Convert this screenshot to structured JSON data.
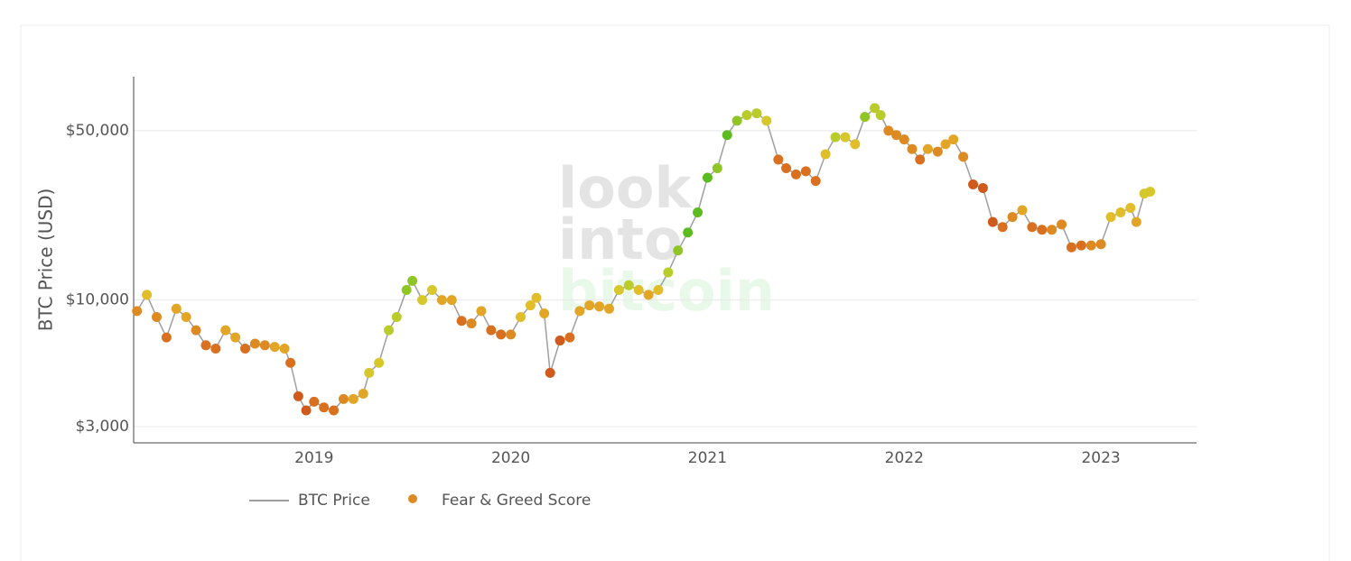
{
  "chart_data": {
    "type": "line-scatter",
    "y_label": "BTC Price (USD)",
    "watermark": [
      "look",
      "into",
      "bitcoin"
    ],
    "log_y": true,
    "grid": true,
    "xlim": [
      2018.083,
      2023.486
    ],
    "xticks": [
      2019,
      2020,
      2021,
      2022,
      2023
    ],
    "ylim": [
      2570,
      83600
    ],
    "yticks": [
      {
        "value": 3000,
        "label": "$3,000"
      },
      {
        "value": 10000,
        "label": "$10,000"
      },
      {
        "value": 50000,
        "label": "$50,000"
      }
    ],
    "x": [
      2018.1,
      2018.15,
      2018.2,
      2018.25,
      2018.3,
      2018.35,
      2018.4,
      2018.45,
      2018.5,
      2018.55,
      2018.6,
      2018.65,
      2018.7,
      2018.75,
      2018.8,
      2018.85,
      2018.88,
      2018.92,
      2018.96,
      2019.0,
      2019.05,
      2019.1,
      2019.15,
      2019.2,
      2019.25,
      2019.28,
      2019.33,
      2019.38,
      2019.42,
      2019.47,
      2019.5,
      2019.55,
      2019.6,
      2019.65,
      2019.7,
      2019.75,
      2019.8,
      2019.85,
      2019.9,
      2019.95,
      2020.0,
      2020.05,
      2020.1,
      2020.13,
      2020.17,
      2020.2,
      2020.25,
      2020.3,
      2020.35,
      2020.4,
      2020.45,
      2020.5,
      2020.55,
      2020.6,
      2020.65,
      2020.7,
      2020.75,
      2020.8,
      2020.85,
      2020.9,
      2020.95,
      2021.0,
      2021.05,
      2021.1,
      2021.15,
      2021.2,
      2021.25,
      2021.3,
      2021.36,
      2021.4,
      2021.45,
      2021.5,
      2021.55,
      2021.6,
      2021.65,
      2021.7,
      2021.75,
      2021.8,
      2021.85,
      2021.88,
      2021.92,
      2021.96,
      2022.0,
      2022.04,
      2022.08,
      2022.12,
      2022.17,
      2022.21,
      2022.25,
      2022.3,
      2022.35,
      2022.4,
      2022.45,
      2022.5,
      2022.55,
      2022.6,
      2022.65,
      2022.7,
      2022.75,
      2022.8,
      2022.85,
      2022.9,
      2022.95,
      2023.0,
      2023.05,
      2023.1,
      2023.15,
      2023.18,
      2023.22,
      2023.25
    ],
    "series": [
      {
        "name": "BTC Price",
        "color": "#9e9e9e",
        "values": [
          9000,
          10500,
          8500,
          7000,
          9200,
          8500,
          7500,
          6500,
          6300,
          7500,
          7000,
          6300,
          6600,
          6500,
          6400,
          6300,
          5500,
          4000,
          3500,
          3800,
          3600,
          3500,
          3900,
          3900,
          4100,
          5000,
          5500,
          7500,
          8500,
          11000,
          12000,
          10000,
          11000,
          10000,
          10000,
          8200,
          8000,
          9000,
          7500,
          7200,
          7200,
          8500,
          9500,
          10200,
          8800,
          5000,
          6800,
          7000,
          9000,
          9500,
          9400,
          9200,
          11000,
          11500,
          11000,
          10500,
          11000,
          13000,
          16000,
          19000,
          23000,
          32000,
          35000,
          48000,
          55000,
          58000,
          59000,
          55000,
          38000,
          35000,
          33000,
          34000,
          31000,
          40000,
          47000,
          47000,
          44000,
          57000,
          62000,
          58000,
          50000,
          48000,
          46000,
          42000,
          38000,
          42000,
          41000,
          44000,
          46000,
          39000,
          30000,
          29000,
          21000,
          20000,
          22000,
          23500,
          20000,
          19500,
          19500,
          20500,
          16500,
          16800,
          16800,
          17000,
          22000,
          23000,
          24000,
          21000,
          27500,
          28000
        ]
      },
      {
        "name": "Fear & Greed Score",
        "color": "#de8a22",
        "colors": [
          "#de8a22",
          "#e2bd2a",
          "#de8a22",
          "#d8701f",
          "#e3a526",
          "#e3a526",
          "#de8a22",
          "#d8701f",
          "#d8701f",
          "#e3a526",
          "#e3a526",
          "#d8701f",
          "#de8a22",
          "#de8a22",
          "#e3a526",
          "#e3a526",
          "#d8701f",
          "#cf5a1c",
          "#cf5a1c",
          "#d8701f",
          "#d8701f",
          "#d8701f",
          "#de8a22",
          "#e3a526",
          "#e3a526",
          "#d6c72c",
          "#d6c72c",
          "#b9cc2a",
          "#b9cc2a",
          "#8fc625",
          "#8fc625",
          "#d6c72c",
          "#d6c72c",
          "#e3a526",
          "#e3a526",
          "#d8701f",
          "#de8a22",
          "#e3a526",
          "#d8701f",
          "#d8701f",
          "#de8a22",
          "#e2bd2a",
          "#e2bd2a",
          "#e2bd2a",
          "#e3a526",
          "#cf5a1c",
          "#cf5a1c",
          "#d8701f",
          "#e3a526",
          "#e3a526",
          "#e3a526",
          "#e3a526",
          "#d6c72c",
          "#b9cc2a",
          "#e2bd2a",
          "#e3a526",
          "#e2bd2a",
          "#b9cc2a",
          "#8fc625",
          "#5cbb1e",
          "#5cbb1e",
          "#5cbb1e",
          "#8fc625",
          "#5cbb1e",
          "#8fc625",
          "#b9cc2a",
          "#b9cc2a",
          "#d6c72c",
          "#d8701f",
          "#d8701f",
          "#d8701f",
          "#d8701f",
          "#d8701f",
          "#e2bd2a",
          "#b9cc2a",
          "#d6c72c",
          "#e2bd2a",
          "#8fc625",
          "#b9cc2a",
          "#b9cc2a",
          "#de8a22",
          "#de8a22",
          "#de8a22",
          "#de8a22",
          "#d8701f",
          "#e3a526",
          "#de8a22",
          "#e3a526",
          "#e3a526",
          "#de8a22",
          "#cf5a1c",
          "#cf5a1c",
          "#cf5a1c",
          "#d8701f",
          "#de8a22",
          "#e3a526",
          "#d8701f",
          "#d8701f",
          "#de8a22",
          "#de8a22",
          "#d8701f",
          "#d8701f",
          "#de8a22",
          "#de8a22",
          "#e2bd2a",
          "#e2bd2a",
          "#e2bd2a",
          "#e3a526",
          "#d6c72c",
          "#d6c72c"
        ]
      }
    ]
  }
}
